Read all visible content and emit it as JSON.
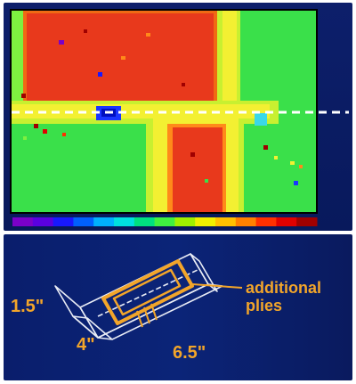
{
  "heatmap": {
    "colormap": [
      "#7b00c8",
      "#5a00e0",
      "#1818ff",
      "#0060ff",
      "#00b0ff",
      "#00e0e0",
      "#00e080",
      "#40f040",
      "#a0f000",
      "#f0f000",
      "#ffc000",
      "#ff8000",
      "#ff3000",
      "#e00000",
      "#a00000"
    ],
    "colors": {
      "background_green": "#3ae04a",
      "hot_red": "#e8391c",
      "warm_orange": "#ff8a1a",
      "yellow_band": "#f3f032",
      "dashed_line": "#ffffff"
    }
  },
  "diagram": {
    "label_height": "1.5\"",
    "label_width": "4\"",
    "label_length": "6.5\"",
    "label_additional_line1": "additional",
    "label_additional_line2": "plies",
    "line_color": "#e9ecf5",
    "label_color": "#f2a52a"
  }
}
